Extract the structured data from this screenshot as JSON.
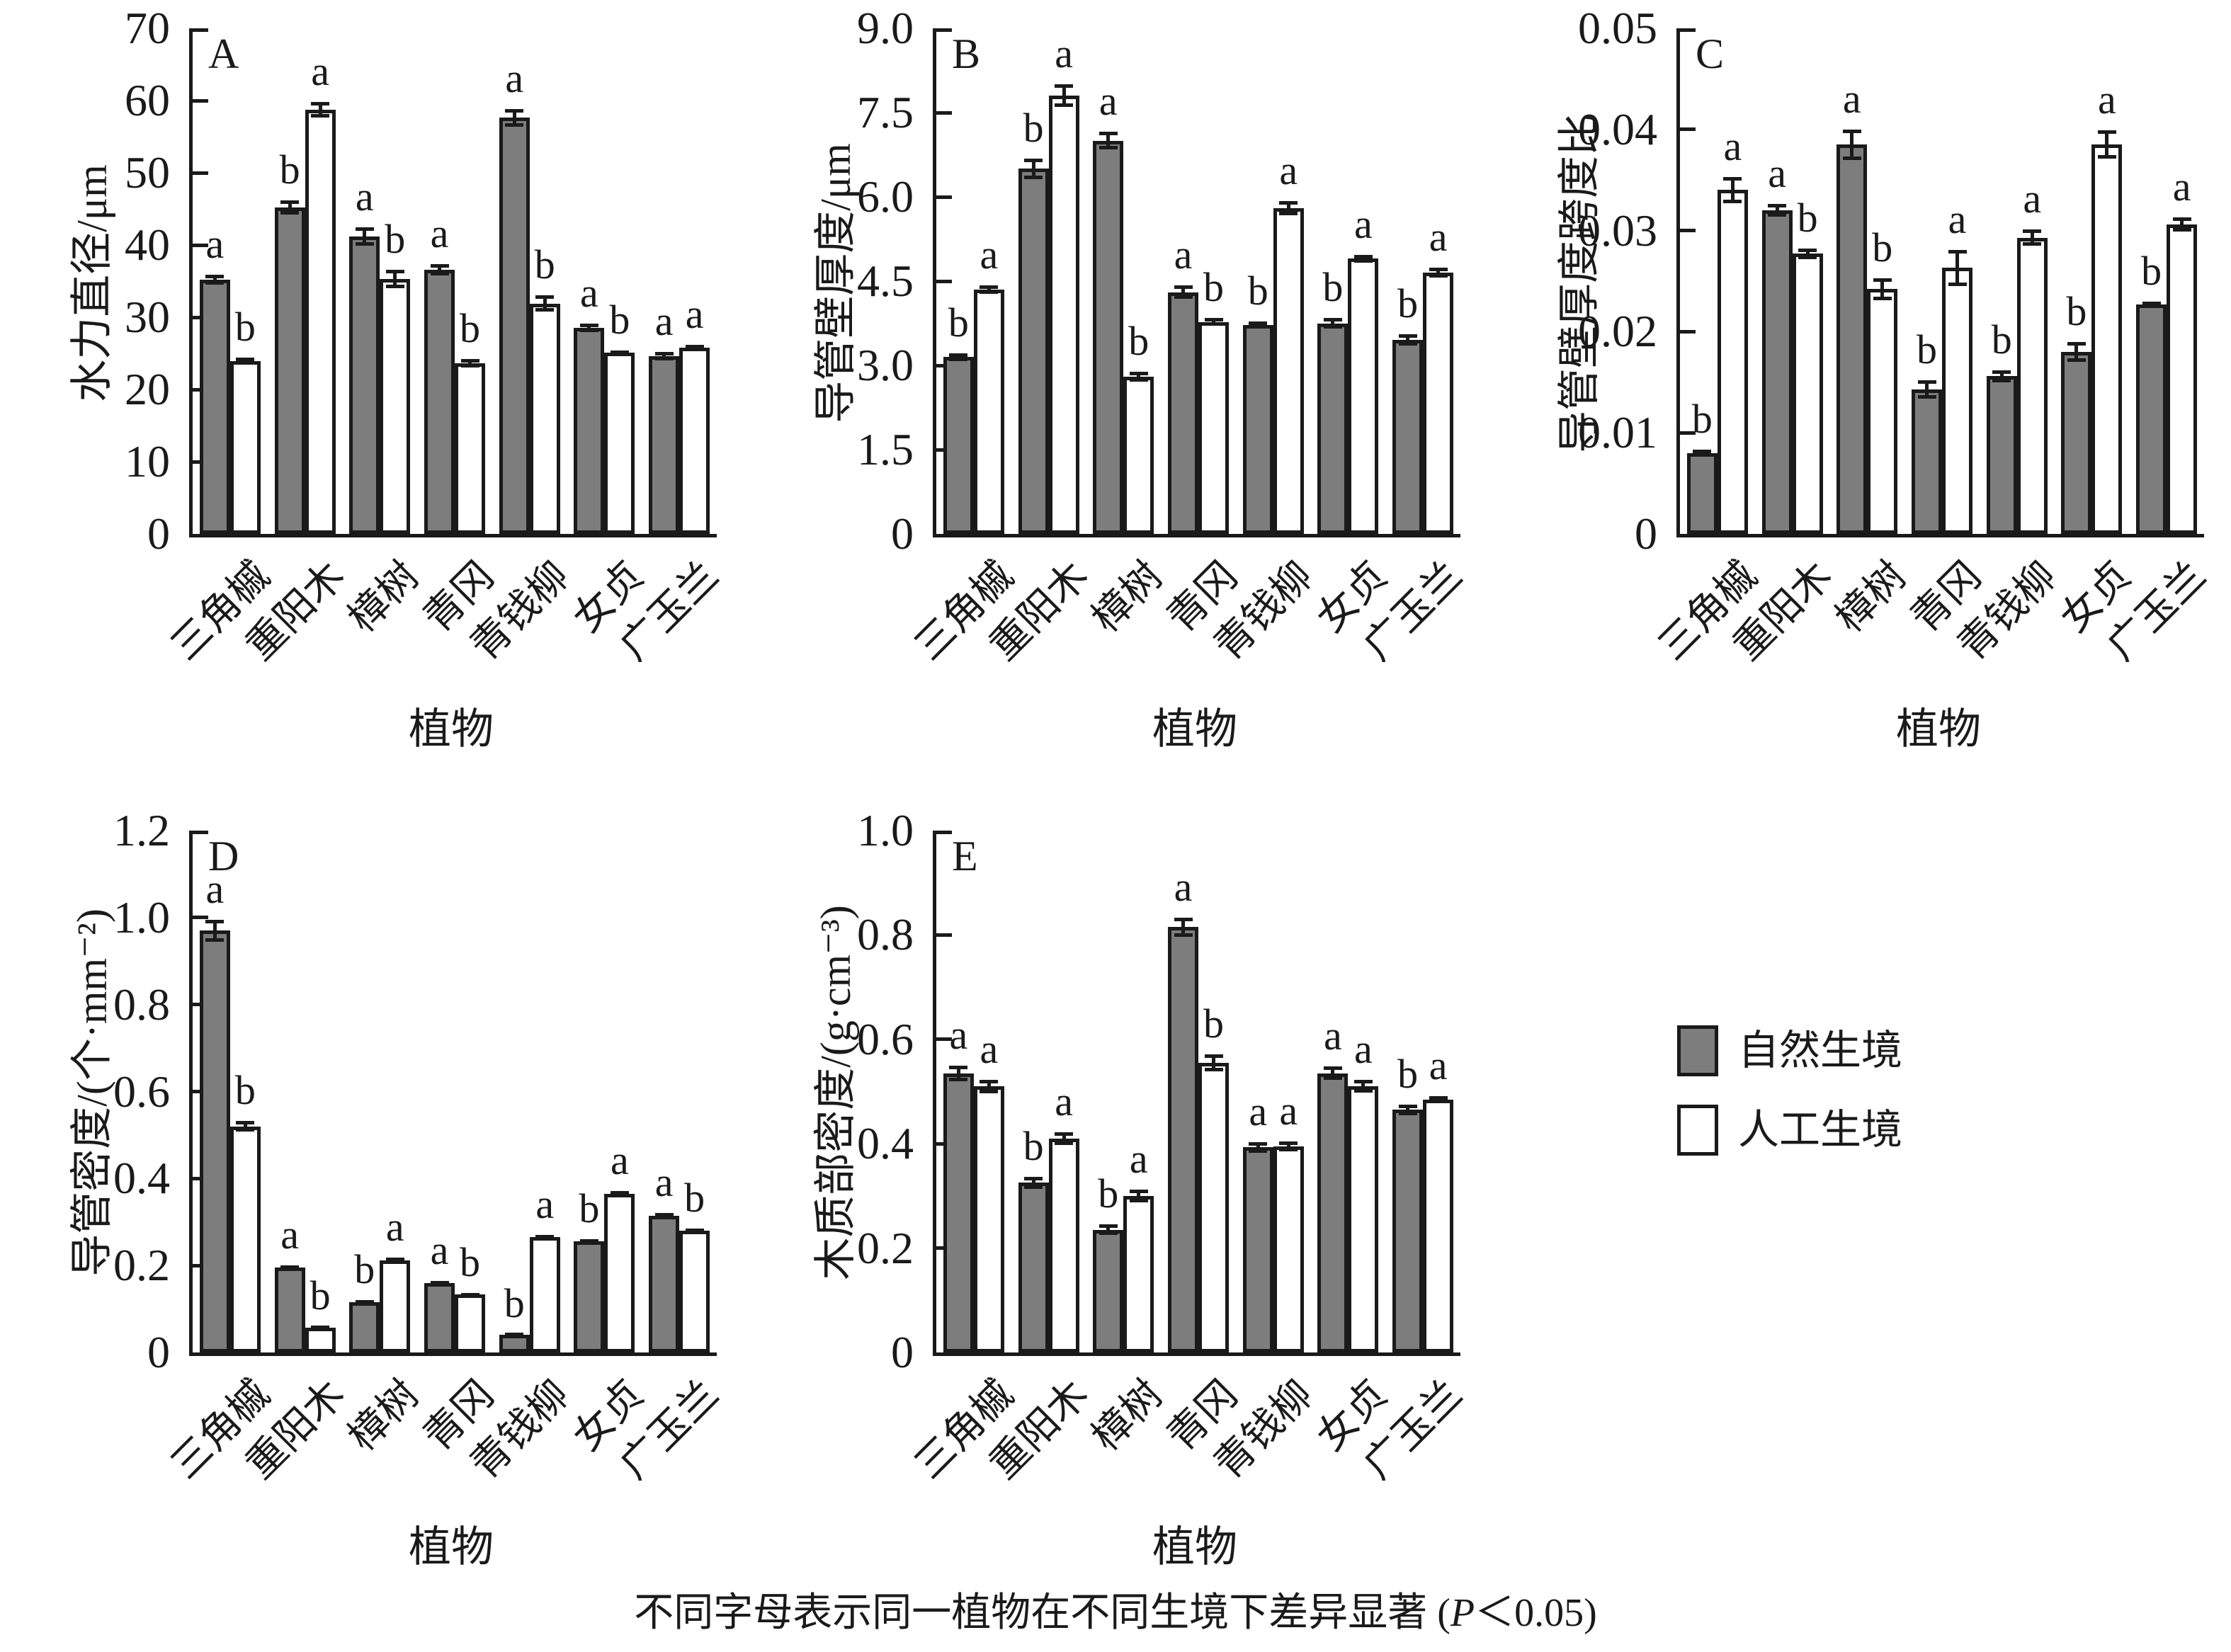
{
  "figure": {
    "caption_prefix": "不同字母表示同一植物在不同生境下差异显著 (",
    "caption_italic": "P",
    "caption_suffix": "＜0.05)"
  },
  "legend": {
    "items": [
      {
        "label": "自然生境",
        "swatch": "#7d7d7d"
      },
      {
        "label": "人工生境",
        "swatch": "#ffffff"
      }
    ]
  },
  "colors": {
    "axis": "#1a1a1a",
    "natural_fill": "#7d7d7d",
    "artificial_fill": "#ffffff"
  },
  "chart_data": [
    {
      "type": "bar",
      "panel_label": "A",
      "ylabel": "水力直径/μm",
      "xlabel": "植物",
      "ymax": 70,
      "yticks": [
        {
          "value": 0,
          "label": "0"
        },
        {
          "value": 10,
          "label": "10"
        },
        {
          "value": 20,
          "label": "20"
        },
        {
          "value": 30,
          "label": "30"
        },
        {
          "value": 40,
          "label": "40"
        },
        {
          "value": 50,
          "label": "50"
        },
        {
          "value": 60,
          "label": "60"
        },
        {
          "value": 70,
          "label": "70"
        }
      ],
      "categories": [
        "三角槭",
        "重阳木",
        "樟树",
        "青冈",
        "青钱柳",
        "女贞",
        "广玉兰"
      ],
      "series": [
        {
          "name": "自然生境",
          "fill": "#7d7d7d",
          "values": [
            35.2,
            45.2,
            41.2,
            36.6,
            57.6,
            28.5,
            24.6
          ],
          "errors": [
            0.7,
            1.0,
            1.3,
            0.8,
            1.2,
            0.6,
            0.6
          ],
          "letters": [
            "a",
            "b",
            "a",
            "a",
            "a",
            "a",
            "a"
          ]
        },
        {
          "name": "人工生境",
          "fill": "#ffffff",
          "values": [
            23.9,
            58.7,
            35.3,
            23.6,
            31.9,
            25.1,
            25.8
          ],
          "errors": [
            0.5,
            1.1,
            1.3,
            0.6,
            1.1,
            0.3,
            0.4
          ],
          "letters": [
            "b",
            "a",
            "b",
            "b",
            "b",
            "b",
            "a"
          ]
        }
      ]
    },
    {
      "type": "bar",
      "panel_label": "B",
      "ylabel": "导管壁厚度/μm",
      "xlabel": "植物",
      "ymax": 9,
      "yticks": [
        {
          "value": 0,
          "label": "0"
        },
        {
          "value": 1.5,
          "label": "1.5"
        },
        {
          "value": 3,
          "label": "3.0"
        },
        {
          "value": 4.5,
          "label": "4.5"
        },
        {
          "value": 6,
          "label": "6.0"
        },
        {
          "value": 7.5,
          "label": "7.5"
        },
        {
          "value": 9,
          "label": "9.0"
        }
      ],
      "categories": [
        "三角槭",
        "重阳木",
        "樟树",
        "青冈",
        "青钱柳",
        "女贞",
        "广玉兰"
      ],
      "series": [
        {
          "name": "自然生境",
          "fill": "#7d7d7d",
          "values": [
            3.15,
            6.5,
            7.0,
            4.3,
            3.72,
            3.75,
            3.45
          ],
          "errors": [
            0.07,
            0.18,
            0.16,
            0.12,
            0.06,
            0.1,
            0.1
          ],
          "letters": [
            "b",
            "b",
            "a",
            "a",
            "b",
            "b",
            "b"
          ]
        },
        {
          "name": "人工生境",
          "fill": "#ffffff",
          "values": [
            4.35,
            7.8,
            2.8,
            3.77,
            5.8,
            4.9,
            4.65
          ],
          "errors": [
            0.08,
            0.2,
            0.09,
            0.07,
            0.13,
            0.07,
            0.09
          ],
          "letters": [
            "a",
            "a",
            "b",
            "b",
            "a",
            "a",
            "a"
          ]
        }
      ]
    },
    {
      "type": "bar",
      "panel_label": "C",
      "ylabel": "导管壁厚度跨度比",
      "xlabel": "植物",
      "ymax": 0.05,
      "yticks": [
        {
          "value": 0,
          "label": "0"
        },
        {
          "value": 0.01,
          "label": "0.01"
        },
        {
          "value": 0.02,
          "label": "0.02"
        },
        {
          "value": 0.03,
          "label": "0.03"
        },
        {
          "value": 0.04,
          "label": "0.04"
        },
        {
          "value": 0.05,
          "label": "0.05"
        }
      ],
      "categories": [
        "三角槭",
        "重阳木",
        "樟树",
        "青冈",
        "青钱柳",
        "女贞",
        "广玉兰"
      ],
      "series": [
        {
          "name": "自然生境",
          "fill": "#7d7d7d",
          "values": [
            0.008,
            0.032,
            0.0385,
            0.0143,
            0.0156,
            0.018,
            0.0227
          ],
          "errors": [
            0.0003,
            0.0006,
            0.0015,
            0.0009,
            0.0006,
            0.001,
            0.0003
          ],
          "letters": [
            "b",
            "a",
            "a",
            "b",
            "b",
            "b",
            "b"
          ]
        },
        {
          "name": "人工生境",
          "fill": "#ffffff",
          "values": [
            0.034,
            0.0277,
            0.0242,
            0.0263,
            0.0293,
            0.0385,
            0.0306
          ],
          "errors": [
            0.0013,
            0.0005,
            0.0011,
            0.0018,
            0.0008,
            0.0014,
            0.0007
          ],
          "letters": [
            "a",
            "b",
            "b",
            "a",
            "a",
            "a",
            "a"
          ]
        }
      ]
    },
    {
      "type": "bar",
      "panel_label": "D",
      "ylabel": "导管密度/(个·mm⁻²)",
      "xlabel": "植物",
      "ymax": 1.2,
      "yticks": [
        {
          "value": 0,
          "label": "0"
        },
        {
          "value": 0.2,
          "label": "0.2"
        },
        {
          "value": 0.4,
          "label": "0.4"
        },
        {
          "value": 0.6,
          "label": "0.6"
        },
        {
          "value": 0.8,
          "label": "0.8"
        },
        {
          "value": 1.0,
          "label": "1.0"
        },
        {
          "value": 1.2,
          "label": "1.2"
        }
      ],
      "categories": [
        "三角槭",
        "重阳木",
        "樟树",
        "青冈",
        "青钱柳",
        "女贞",
        "广玉兰"
      ],
      "series": [
        {
          "name": "自然生境",
          "fill": "#7d7d7d",
          "values": [
            0.97,
            0.195,
            0.115,
            0.16,
            0.04,
            0.255,
            0.315
          ],
          "errors": [
            0.025,
            0.005,
            0.006,
            0.005,
            0.002,
            0.005,
            0.006
          ],
          "letters": [
            "a",
            "a",
            "b",
            "a",
            "b",
            "b",
            "a"
          ]
        },
        {
          "name": "人工生境",
          "fill": "#ffffff",
          "values": [
            0.52,
            0.057,
            0.212,
            0.133,
            0.265,
            0.365,
            0.28
          ],
          "errors": [
            0.012,
            0.004,
            0.007,
            0.004,
            0.005,
            0.007,
            0.005
          ],
          "letters": [
            "b",
            "b",
            "a",
            "b",
            "a",
            "a",
            "b"
          ]
        }
      ]
    },
    {
      "type": "bar",
      "panel_label": "E",
      "ylabel": "木质部密度/(g·cm⁻³)",
      "xlabel": "植物",
      "ymax": 1.0,
      "yticks": [
        {
          "value": 0,
          "label": "0"
        },
        {
          "value": 0.2,
          "label": "0.2"
        },
        {
          "value": 0.4,
          "label": "0.4"
        },
        {
          "value": 0.6,
          "label": "0.6"
        },
        {
          "value": 0.8,
          "label": "0.8"
        },
        {
          "value": 1.0,
          "label": "1.0"
        }
      ],
      "categories": [
        "三角槭",
        "重阳木",
        "樟树",
        "青冈",
        "青钱柳",
        "女贞",
        "广玉兰"
      ],
      "series": [
        {
          "name": "自然生境",
          "fill": "#7d7d7d",
          "values": [
            0.535,
            0.325,
            0.235,
            0.815,
            0.393,
            0.535,
            0.465
          ],
          "errors": [
            0.015,
            0.012,
            0.01,
            0.018,
            0.01,
            0.013,
            0.01
          ],
          "letters": [
            "a",
            "b",
            "b",
            "a",
            "a",
            "a",
            "b"
          ]
        },
        {
          "name": "人工生境",
          "fill": "#ffffff",
          "values": [
            0.51,
            0.41,
            0.3,
            0.555,
            0.395,
            0.51,
            0.485
          ],
          "errors": [
            0.013,
            0.012,
            0.012,
            0.016,
            0.01,
            0.012,
            0.006
          ],
          "letters": [
            "a",
            "a",
            "a",
            "b",
            "a",
            "a",
            "a"
          ]
        }
      ]
    }
  ]
}
